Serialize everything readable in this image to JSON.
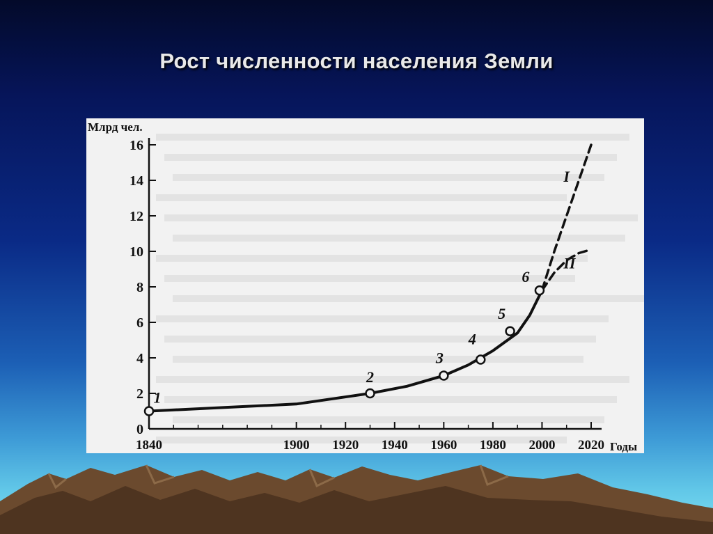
{
  "slide": {
    "title": "Рост численности населения Земли"
  },
  "chart_data": {
    "type": "line",
    "title": "",
    "ylabel": "Млрд чел.",
    "xlabel": "Годы",
    "xlim": [
      1840,
      2020
    ],
    "ylim": [
      0,
      16
    ],
    "x_ticks": [
      1840,
      1900,
      1920,
      1940,
      1960,
      1980,
      2000,
      2020
    ],
    "y_ticks": [
      0,
      2,
      4,
      6,
      8,
      10,
      12,
      14,
      16
    ],
    "grid": false,
    "series": [
      {
        "name": "",
        "style": "solid",
        "x": [
          1840,
          1870,
          1900,
          1930,
          1945,
          1960,
          1970,
          1980,
          1990,
          1995,
          2000
        ],
        "y": [
          1.0,
          1.2,
          1.4,
          2.0,
          2.4,
          3.0,
          3.6,
          4.4,
          5.4,
          6.4,
          7.8
        ]
      },
      {
        "name": "I",
        "style": "dashed",
        "x": [
          2000,
          2005,
          2010,
          2015,
          2020
        ],
        "y": [
          7.8,
          10.0,
          12.0,
          14.0,
          16.0
        ]
      },
      {
        "name": "II",
        "style": "dashed",
        "x": [
          2000,
          2005,
          2010,
          2015,
          2020
        ],
        "y": [
          7.8,
          8.8,
          9.5,
          9.9,
          10.1
        ]
      }
    ],
    "points": [
      {
        "label": "1",
        "x": 1840,
        "y": 1.0
      },
      {
        "label": "2",
        "x": 1930,
        "y": 2.0
      },
      {
        "label": "3",
        "x": 1960,
        "y": 3.0
      },
      {
        "label": "4",
        "x": 1975,
        "y": 3.9
      },
      {
        "label": "5",
        "x": 1987,
        "y": 5.5
      },
      {
        "label": "6",
        "x": 1999,
        "y": 7.8
      }
    ]
  }
}
